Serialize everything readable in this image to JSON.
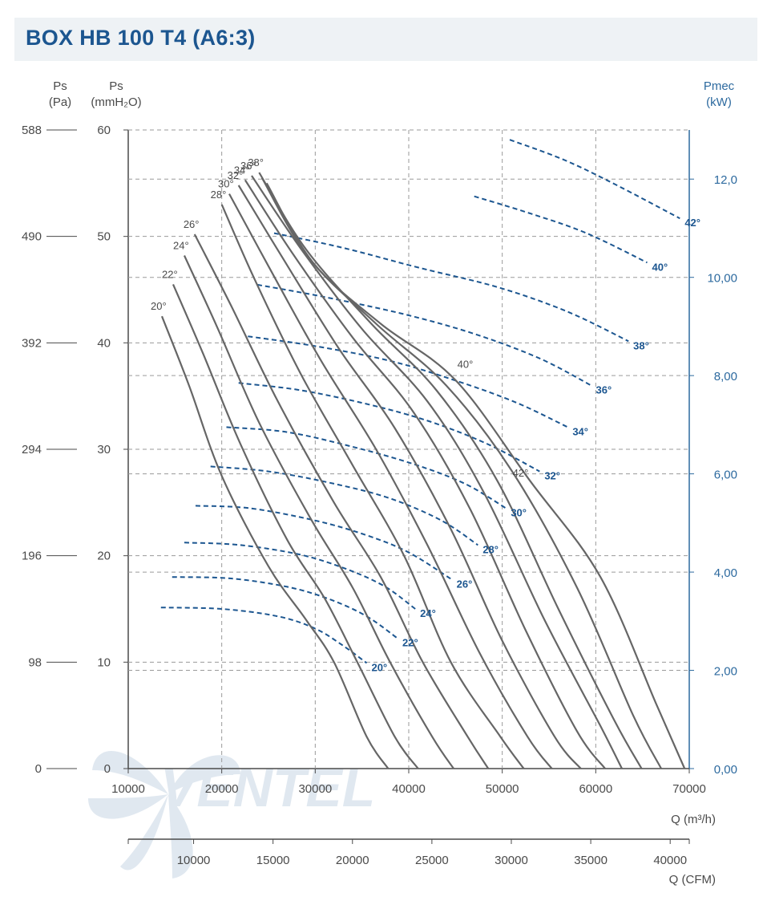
{
  "header": {
    "title": "BOX HB 100 T4 (A6:3)"
  },
  "watermark": {
    "text": "VENTEL"
  },
  "colors": {
    "title": "#1c5690",
    "pressure_curve": "#666666",
    "power_curve": "#1c5690",
    "right_axis": "#2d6a9f",
    "grid": "#9a9a9a"
  },
  "chart_data": {
    "type": "line",
    "title": "BOX HB 100 T4 (A6:3)",
    "x_axis": {
      "label": "Q (m³/h)",
      "min": 10000,
      "max": 70000,
      "ticks": [
        "10000",
        "20000",
        "30000",
        "40000",
        "50000",
        "60000",
        "70000"
      ]
    },
    "x2_axis": {
      "label": "Q (CFM)",
      "ticks": [
        "10000",
        "15000",
        "20000",
        "25000",
        "30000",
        "35000",
        "40000"
      ]
    },
    "y_axis_mm": {
      "label": "Ps",
      "unit": "(mmH₂O)",
      "min": 0,
      "max": 60,
      "ticks": [
        "0",
        "10",
        "20",
        "30",
        "40",
        "50",
        "60"
      ]
    },
    "y_axis_pa": {
      "label": "Ps",
      "unit": "(Pa)",
      "ticks": [
        "0",
        "98",
        "196",
        "294",
        "392",
        "490",
        "588"
      ]
    },
    "y2_axis": {
      "label": "Pmec",
      "unit": "(kW)",
      "min": 0,
      "max": 13,
      "ticks": [
        "0,00",
        "2,00",
        "4,00",
        "6,00",
        "8,00",
        "10,00",
        "12,0"
      ]
    },
    "pressure_series": [
      {
        "name": "20°",
        "points": [
          [
            13600,
            42.5
          ],
          [
            16500,
            36
          ],
          [
            20000,
            27.5
          ],
          [
            25000,
            19
          ],
          [
            29000,
            14
          ],
          [
            32000,
            10
          ],
          [
            35500,
            3
          ],
          [
            37800,
            0
          ]
        ]
      },
      {
        "name": "22°",
        "points": [
          [
            14800,
            45.5
          ],
          [
            18000,
            39
          ],
          [
            22000,
            30.5
          ],
          [
            27000,
            21.5
          ],
          [
            31000,
            16
          ],
          [
            34500,
            10
          ],
          [
            38500,
            3
          ],
          [
            41000,
            0
          ]
        ]
      },
      {
        "name": "24°",
        "points": [
          [
            16000,
            48.2
          ],
          [
            19500,
            41.5
          ],
          [
            24000,
            32.5
          ],
          [
            29500,
            23.5
          ],
          [
            34000,
            17
          ],
          [
            38000,
            10
          ],
          [
            42500,
            3
          ],
          [
            44800,
            0
          ]
        ]
      },
      {
        "name": "26°",
        "points": [
          [
            17100,
            50.2
          ],
          [
            21000,
            43.5
          ],
          [
            26000,
            34.5
          ],
          [
            32000,
            25
          ],
          [
            37000,
            18
          ],
          [
            41500,
            10
          ],
          [
            46300,
            3
          ],
          [
            48500,
            0
          ]
        ]
      },
      {
        "name": "28°",
        "points": [
          [
            20000,
            53
          ],
          [
            23500,
            46
          ],
          [
            28500,
            37
          ],
          [
            34000,
            28.5
          ],
          [
            39500,
            20
          ],
          [
            44500,
            10
          ],
          [
            49800,
            3
          ],
          [
            52300,
            0
          ]
        ]
      },
      {
        "name": "30°",
        "points": [
          [
            20800,
            54
          ],
          [
            25000,
            47.2
          ],
          [
            30500,
            38.5
          ],
          [
            36500,
            30
          ],
          [
            42000,
            21
          ],
          [
            47500,
            11
          ],
          [
            52700,
            3
          ],
          [
            55300,
            0
          ]
        ]
      },
      {
        "name": "32°",
        "points": [
          [
            21800,
            54.8
          ],
          [
            26500,
            48
          ],
          [
            32500,
            39.5
          ],
          [
            38500,
            32
          ],
          [
            44500,
            22.5
          ],
          [
            50000,
            12
          ],
          [
            55600,
            3
          ],
          [
            58400,
            0
          ]
        ]
      },
      {
        "name": "34°",
        "points": [
          [
            22500,
            55.3
          ],
          [
            27500,
            48.5
          ],
          [
            34000,
            40.5
          ],
          [
            40500,
            33.5
          ],
          [
            46500,
            24.5
          ],
          [
            52500,
            13
          ],
          [
            58000,
            3.5
          ],
          [
            61000,
            0
          ]
        ]
      },
      {
        "name": "36°",
        "points": [
          [
            23200,
            55.7
          ],
          [
            28500,
            48.8
          ],
          [
            35000,
            41.3
          ],
          [
            42000,
            34.5
          ],
          [
            48000,
            26
          ],
          [
            54500,
            14
          ],
          [
            60500,
            4
          ],
          [
            62800,
            0
          ]
        ]
      },
      {
        "name": "38°",
        "points": [
          [
            24000,
            56
          ],
          [
            29000,
            48.8
          ],
          [
            36000,
            41.8
          ],
          [
            43000,
            35.5
          ],
          [
            49500,
            27
          ],
          [
            56000,
            15
          ],
          [
            62000,
            4.5
          ],
          [
            64900,
            0
          ]
        ]
      },
      {
        "name": "40°",
        "points": [
          [
            24300,
            55.5
          ],
          [
            29300,
            48
          ],
          [
            36500,
            41.8
          ],
          [
            44000,
            36
          ],
          [
            51000,
            28
          ],
          [
            58000,
            17
          ],
          [
            64000,
            5
          ],
          [
            67000,
            0
          ]
        ]
      },
      {
        "name": "42°",
        "points": [
          [
            24800,
            55
          ],
          [
            29800,
            47.5
          ],
          [
            37000,
            41.8
          ],
          [
            45000,
            36.5
          ],
          [
            53000,
            27
          ],
          [
            60500,
            18
          ],
          [
            66500,
            6
          ],
          [
            69500,
            0
          ]
        ]
      }
    ],
    "power_series": [
      {
        "name": "20°",
        "points": [
          [
            13500,
            3.28
          ],
          [
            20000,
            3.25
          ],
          [
            26000,
            3.1
          ],
          [
            30000,
            2.85
          ],
          [
            33000,
            2.5
          ],
          [
            35500,
            2.15
          ]
        ]
      },
      {
        "name": "22°",
        "points": [
          [
            14700,
            3.9
          ],
          [
            21000,
            3.87
          ],
          [
            27000,
            3.7
          ],
          [
            31500,
            3.45
          ],
          [
            35500,
            3.1
          ],
          [
            38800,
            2.65
          ]
        ]
      },
      {
        "name": "24°",
        "points": [
          [
            16000,
            4.6
          ],
          [
            22000,
            4.55
          ],
          [
            28500,
            4.35
          ],
          [
            33500,
            4.05
          ],
          [
            37500,
            3.7
          ],
          [
            40700,
            3.25
          ]
        ]
      },
      {
        "name": "26°",
        "points": [
          [
            17200,
            5.35
          ],
          [
            23000,
            5.3
          ],
          [
            30000,
            5.05
          ],
          [
            35500,
            4.75
          ],
          [
            40000,
            4.4
          ],
          [
            44600,
            3.85
          ]
        ]
      },
      {
        "name": "28°",
        "points": [
          [
            18800,
            6.15
          ],
          [
            25000,
            6.05
          ],
          [
            32000,
            5.8
          ],
          [
            38000,
            5.5
          ],
          [
            43500,
            5.05
          ],
          [
            47400,
            4.55
          ]
        ]
      },
      {
        "name": "30°",
        "points": [
          [
            20500,
            6.95
          ],
          [
            27000,
            6.85
          ],
          [
            34000,
            6.55
          ],
          [
            40500,
            6.2
          ],
          [
            46000,
            5.8
          ],
          [
            50400,
            5.3
          ]
        ]
      },
      {
        "name": "32°",
        "points": [
          [
            21800,
            7.85
          ],
          [
            28500,
            7.7
          ],
          [
            36000,
            7.4
          ],
          [
            42500,
            7.05
          ],
          [
            48500,
            6.6
          ],
          [
            54000,
            6.05
          ]
        ]
      },
      {
        "name": "34°",
        "points": [
          [
            22800,
            8.8
          ],
          [
            30000,
            8.6
          ],
          [
            38000,
            8.3
          ],
          [
            45000,
            7.9
          ],
          [
            51500,
            7.45
          ],
          [
            57000,
            6.95
          ]
        ]
      },
      {
        "name": "36°",
        "points": [
          [
            23800,
            9.85
          ],
          [
            31000,
            9.6
          ],
          [
            39500,
            9.25
          ],
          [
            47000,
            8.85
          ],
          [
            54000,
            8.35
          ],
          [
            59500,
            7.8
          ]
        ]
      },
      {
        "name": "38°",
        "points": [
          [
            25600,
            10.9
          ],
          [
            33000,
            10.6
          ],
          [
            41000,
            10.2
          ],
          [
            49500,
            9.8
          ],
          [
            57000,
            9.3
          ],
          [
            63500,
            8.7
          ]
        ]
      },
      {
        "name": "40°",
        "points": [
          [
            47000,
            11.65
          ],
          [
            53000,
            11.3
          ],
          [
            59000,
            10.9
          ],
          [
            65500,
            10.3
          ]
        ]
      },
      {
        "name": "42°",
        "points": [
          [
            50800,
            12.8
          ],
          [
            56500,
            12.4
          ],
          [
            62000,
            11.9
          ],
          [
            69000,
            11.2
          ]
        ]
      }
    ],
    "curve_labels_pressure": [
      "20°",
      "22°",
      "24°",
      "26°",
      "28°",
      "30°",
      "32°",
      "34°",
      "36°",
      "38°",
      "40°",
      "42°"
    ],
    "curve_labels_power": [
      "20°",
      "22°",
      "24°",
      "26°",
      "28°",
      "30°",
      "32°",
      "34°",
      "36°",
      "38°",
      "40°",
      "42°"
    ]
  }
}
